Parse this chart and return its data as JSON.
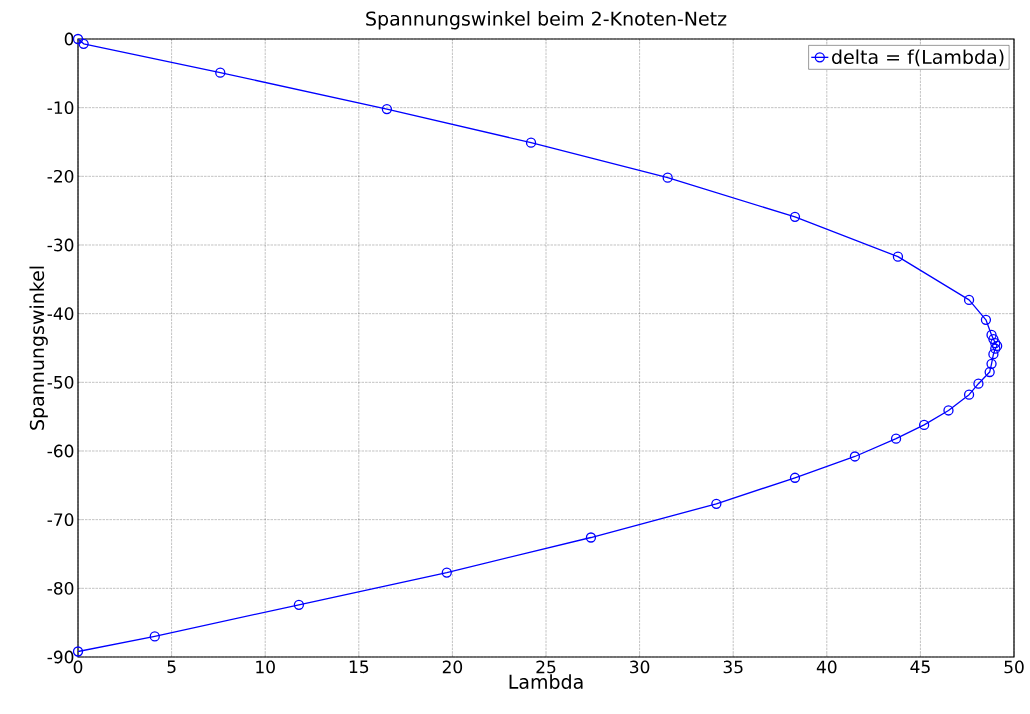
{
  "chart_data": {
    "type": "line",
    "title": "Spannungswinkel beim 2-Knoten-Netz",
    "xlabel": "Lambda",
    "ylabel": "Spannungswinkel",
    "xlim": [
      0,
      50
    ],
    "ylim": [
      -90,
      0
    ],
    "xticks": [
      0,
      5,
      10,
      15,
      20,
      25,
      30,
      35,
      40,
      45,
      50
    ],
    "yticks": [
      -90,
      -80,
      -70,
      -60,
      -50,
      -40,
      -30,
      -20,
      -10,
      0
    ],
    "grid": true,
    "legend": "top right",
    "marker": "circle",
    "line_style": "solid",
    "series": [
      {
        "name": "delta = f(Lambda)",
        "color": "#0000ff",
        "x": [
          0,
          0.3,
          7.6,
          16.5,
          24.2,
          31.5,
          38.3,
          43.8,
          47.6,
          48.5,
          48.8,
          48.9,
          49.0,
          49.1,
          49.0,
          48.9,
          48.8,
          48.7,
          48.1,
          47.6,
          46.5,
          45.2,
          43.7,
          41.5,
          38.3,
          34.1,
          27.4,
          19.7,
          11.8,
          4.1,
          0
        ],
        "values": [
          0,
          -0.7,
          -4.9,
          -10.2,
          -15.1,
          -20.2,
          -25.9,
          -31.7,
          -38.0,
          -40.9,
          -43.1,
          -43.7,
          -44.3,
          -44.7,
          -45.1,
          -45.9,
          -47.3,
          -48.5,
          -50.2,
          -51.8,
          -54.1,
          -56.2,
          -58.2,
          -60.8,
          -63.9,
          -67.7,
          -72.6,
          -77.7,
          -82.4,
          -87.0,
          -89.2
        ]
      }
    ]
  }
}
